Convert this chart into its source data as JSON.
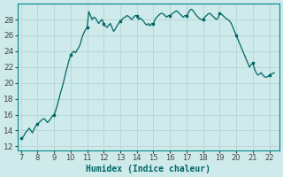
{
  "title": "",
  "xlabel": "Humidex (Indice chaleur)",
  "ylabel": "",
  "bg_color": "#ceeaea",
  "grid_color": "#b8d8d8",
  "line_color": "#006666",
  "marker_color": "#006666",
  "xlim": [
    6.8,
    22.6
  ],
  "ylim": [
    11.5,
    30.0
  ],
  "yticks": [
    12,
    14,
    16,
    18,
    20,
    22,
    24,
    26,
    28
  ],
  "xticks": [
    7,
    8,
    9,
    10,
    11,
    12,
    13,
    14,
    15,
    16,
    17,
    18,
    19,
    20,
    21,
    22
  ],
  "x": [
    7.0,
    7.1,
    7.2,
    7.3,
    7.4,
    7.5,
    7.6,
    7.7,
    7.8,
    7.9,
    8.0,
    8.1,
    8.2,
    8.3,
    8.4,
    8.5,
    8.6,
    8.7,
    8.8,
    8.9,
    9.0,
    9.1,
    9.2,
    9.3,
    9.4,
    9.5,
    9.6,
    9.7,
    9.8,
    9.9,
    10.0,
    10.1,
    10.2,
    10.3,
    10.4,
    10.5,
    10.6,
    10.7,
    10.8,
    10.9,
    11.0,
    11.1,
    11.2,
    11.3,
    11.4,
    11.5,
    11.6,
    11.7,
    11.8,
    11.9,
    12.0,
    12.1,
    12.2,
    12.3,
    12.4,
    12.5,
    12.6,
    12.7,
    12.8,
    12.9,
    13.0,
    13.1,
    13.2,
    13.3,
    13.4,
    13.5,
    13.6,
    13.7,
    13.8,
    13.9,
    14.0,
    14.1,
    14.2,
    14.3,
    14.4,
    14.5,
    14.6,
    14.7,
    14.8,
    14.9,
    15.0,
    15.1,
    15.2,
    15.3,
    15.4,
    15.5,
    15.6,
    15.7,
    15.8,
    15.9,
    16.0,
    16.1,
    16.2,
    16.3,
    16.4,
    16.5,
    16.6,
    16.7,
    16.8,
    16.9,
    17.0,
    17.1,
    17.2,
    17.3,
    17.4,
    17.5,
    17.6,
    17.7,
    17.8,
    17.9,
    18.0,
    18.1,
    18.2,
    18.3,
    18.4,
    18.5,
    18.6,
    18.7,
    18.8,
    18.9,
    19.0,
    19.1,
    19.2,
    19.3,
    19.4,
    19.5,
    19.6,
    19.7,
    19.8,
    19.9,
    20.0,
    20.1,
    20.2,
    20.3,
    20.4,
    20.5,
    20.6,
    20.7,
    20.8,
    20.9,
    21.0,
    21.1,
    21.2,
    21.3,
    21.4,
    21.5,
    21.6,
    21.7,
    21.8,
    21.9,
    22.0,
    22.1,
    22.2,
    22.3
  ],
  "y": [
    13.0,
    13.1,
    13.4,
    13.8,
    14.0,
    14.3,
    14.0,
    13.7,
    14.2,
    14.6,
    14.8,
    15.0,
    15.2,
    15.4,
    15.5,
    15.3,
    15.0,
    15.2,
    15.5,
    15.8,
    16.0,
    16.5,
    17.2,
    18.0,
    18.8,
    19.5,
    20.3,
    21.2,
    22.0,
    22.8,
    23.5,
    23.8,
    24.0,
    23.8,
    24.2,
    24.5,
    25.0,
    25.8,
    26.3,
    26.7,
    27.0,
    29.0,
    28.5,
    28.0,
    28.3,
    28.2,
    27.8,
    27.5,
    27.8,
    28.0,
    27.5,
    27.2,
    27.0,
    27.3,
    27.5,
    27.0,
    26.5,
    26.8,
    27.2,
    27.5,
    27.8,
    28.0,
    28.2,
    28.3,
    28.5,
    28.4,
    28.2,
    28.0,
    28.3,
    28.5,
    28.5,
    28.0,
    28.2,
    28.0,
    27.8,
    27.5,
    27.3,
    27.5,
    27.2,
    27.5,
    27.5,
    28.0,
    28.3,
    28.5,
    28.7,
    28.8,
    28.7,
    28.5,
    28.3,
    28.5,
    28.5,
    28.7,
    28.8,
    29.0,
    29.1,
    28.9,
    28.7,
    28.5,
    28.3,
    28.5,
    28.5,
    28.8,
    29.2,
    29.3,
    29.1,
    28.8,
    28.5,
    28.3,
    28.1,
    28.0,
    28.0,
    28.3,
    28.5,
    28.7,
    28.8,
    28.6,
    28.4,
    28.2,
    28.0,
    28.2,
    28.8,
    28.7,
    28.5,
    28.3,
    28.1,
    28.0,
    27.8,
    27.5,
    27.0,
    26.5,
    26.0,
    25.5,
    25.0,
    24.5,
    24.0,
    23.5,
    23.0,
    22.5,
    22.0,
    22.3,
    22.5,
    21.8,
    21.3,
    21.0,
    21.1,
    21.3,
    21.0,
    20.8,
    20.7,
    20.8,
    21.0,
    21.1,
    21.2,
    21.3
  ],
  "marker_x": [
    7.0,
    8.0,
    9.0,
    10.0,
    11.0,
    12.0,
    13.0,
    14.0,
    15.0,
    16.0,
    17.0,
    18.0,
    19.0,
    20.0,
    21.0,
    22.0
  ],
  "marker_y": [
    13.0,
    14.8,
    16.0,
    23.5,
    27.0,
    27.5,
    27.8,
    28.5,
    27.5,
    28.5,
    28.5,
    28.0,
    28.8,
    26.0,
    22.5,
    21.0
  ]
}
